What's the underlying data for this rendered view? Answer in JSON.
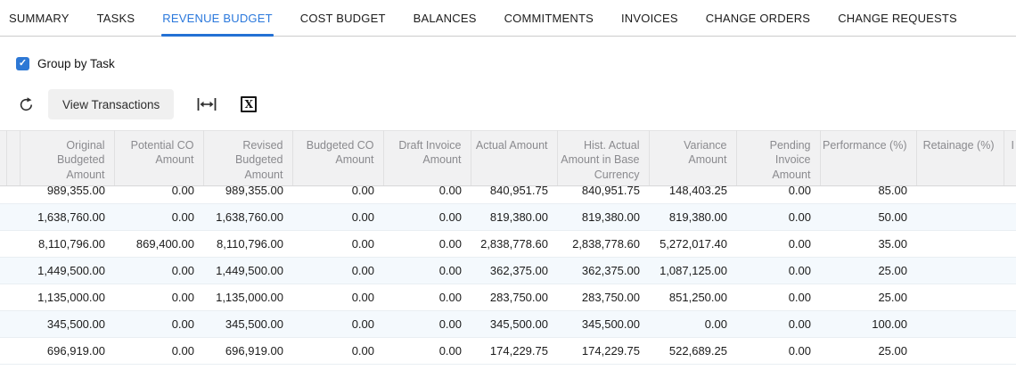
{
  "tabs": {
    "items": [
      {
        "label": "SUMMARY",
        "active": false
      },
      {
        "label": "TASKS",
        "active": false
      },
      {
        "label": "REVENUE BUDGET",
        "active": true
      },
      {
        "label": "COST BUDGET",
        "active": false
      },
      {
        "label": "BALANCES",
        "active": false
      },
      {
        "label": "COMMITMENTS",
        "active": false
      },
      {
        "label": "INVOICES",
        "active": false
      },
      {
        "label": "CHANGE ORDERS",
        "active": false
      },
      {
        "label": "CHANGE REQUESTS",
        "active": false
      }
    ]
  },
  "filters": {
    "group_by_task": {
      "label": "Group by Task",
      "checked": true
    }
  },
  "toolbar": {
    "view_transactions_label": "View Transactions",
    "icons": [
      "refresh-icon",
      "fit-columns-icon",
      "export-excel-icon"
    ]
  },
  "table": {
    "columns": [
      "Original Budgeted Amount",
      "Potential CO Amount",
      "Revised Budgeted Amount",
      "Budgeted CO Amount",
      "Draft Invoice Amount",
      "Actual Amount",
      "Hist. Actual Amount in Base Currency",
      "Variance Amount",
      "Pending Invoice Amount",
      "Performance (%)",
      "Retainage (%)"
    ],
    "partial_column_text": "I",
    "rows": [
      [
        "989,355.00",
        "0.00",
        "989,355.00",
        "0.00",
        "0.00",
        "840,951.75",
        "840,951.75",
        "148,403.25",
        "0.00",
        "85.00",
        ""
      ],
      [
        "1,638,760.00",
        "0.00",
        "1,638,760.00",
        "0.00",
        "0.00",
        "819,380.00",
        "819,380.00",
        "819,380.00",
        "0.00",
        "50.00",
        ""
      ],
      [
        "8,110,796.00",
        "869,400.00",
        "8,110,796.00",
        "0.00",
        "0.00",
        "2,838,778.60",
        "2,838,778.60",
        "5,272,017.40",
        "0.00",
        "35.00",
        ""
      ],
      [
        "1,449,500.00",
        "0.00",
        "1,449,500.00",
        "0.00",
        "0.00",
        "362,375.00",
        "362,375.00",
        "1,087,125.00",
        "0.00",
        "25.00",
        ""
      ],
      [
        "1,135,000.00",
        "0.00",
        "1,135,000.00",
        "0.00",
        "0.00",
        "283,750.00",
        "283,750.00",
        "851,250.00",
        "0.00",
        "25.00",
        ""
      ],
      [
        "345,500.00",
        "0.00",
        "345,500.00",
        "0.00",
        "0.00",
        "345,500.00",
        "345,500.00",
        "0.00",
        "0.00",
        "100.00",
        ""
      ],
      [
        "696,919.00",
        "0.00",
        "696,919.00",
        "0.00",
        "0.00",
        "174,229.75",
        "174,229.75",
        "522,689.25",
        "0.00",
        "25.00",
        ""
      ]
    ]
  },
  "colors": {
    "accent": "#2a78dc",
    "tab_underline": "#2471d4",
    "checkbox_blue": "#2d78d5",
    "header_bg": "#f1f1f2",
    "header_text": "#8a8a8e",
    "row_stripe": "#f4f9fd",
    "row_border": "#e9eef3"
  }
}
